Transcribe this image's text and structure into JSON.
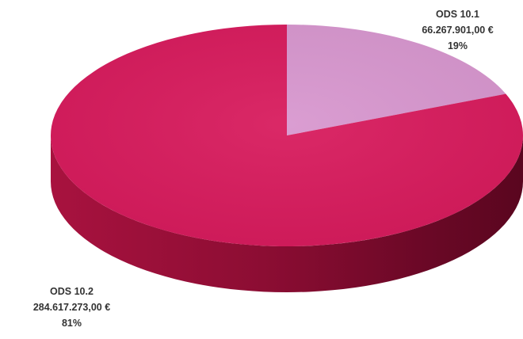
{
  "chart_data": {
    "type": "pie",
    "style": "3d",
    "title": "",
    "series": [
      {
        "name": "ODS 10.1",
        "value_text": "66.267.901,00 €",
        "value": 66267901.0,
        "percent_text": "19%",
        "percent": 19,
        "color": "#d897cf"
      },
      {
        "name": "ODS 10.2",
        "value_text": "284.617.273,00 €",
        "value": 284617273.0,
        "percent_text": "81%",
        "percent": 81,
        "color": "#d81b5d"
      }
    ],
    "legend": "none"
  }
}
